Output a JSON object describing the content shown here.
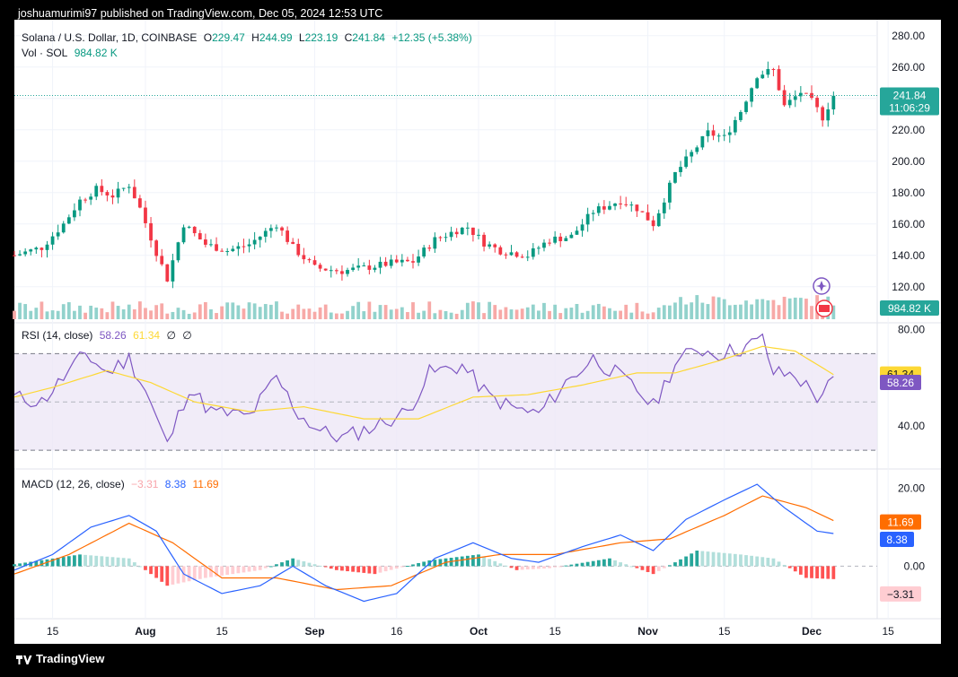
{
  "header": {
    "publisher_line": "joshuamurimi97 published on TradingView.com, Dec 05, 2024 12:53 UTC"
  },
  "legend": {
    "symbol": "Solana / U.S. Dollar, 1D, COINBASE",
    "o_label": "O",
    "o": "229.47",
    "h_label": "H",
    "h": "244.99",
    "l_label": "L",
    "l": "223.19",
    "c_label": "C",
    "c": "241.84",
    "change": "+12.35 (+5.38%)",
    "vol_label": "Vol · SOL",
    "vol": "984.82 K",
    "rsi_label": "RSI (14, close)",
    "rsi_value": "58.26",
    "rsi_ma": "61.34",
    "rsi_extra1": "∅",
    "rsi_extra2": "∅",
    "macd_label": "MACD (12, 26, close)",
    "macd_hist": "−3.31",
    "macd_line": "8.38",
    "macd_signal": "11.69"
  },
  "price_badge": {
    "price": "241.84",
    "countdown": "11:06:29"
  },
  "volume_badge": "984.82 K",
  "rsi_badges": {
    "ma": "61.34",
    "rsi": "58.26"
  },
  "macd_badges": {
    "signal": "11.69",
    "macd": "8.38",
    "hist": "−3.31"
  },
  "footer": {
    "brand": "TradingView"
  },
  "colors": {
    "up": "#089981",
    "down": "#f23645",
    "rsi": "#7e57c2",
    "rsi_ma": "#fdd835",
    "macd": "#2962ff",
    "signal": "#ff6d00",
    "badge": "#26a69a"
  },
  "chart_data": [
    {
      "type": "candlestick",
      "title": "Solana / U.S. Dollar, 1D, COINBASE",
      "y_ticks": [
        "280.00",
        "260.00",
        "240.00",
        "220.00",
        "200.00",
        "180.00",
        "160.00",
        "140.00",
        "120.00"
      ],
      "ylim": [
        105,
        285
      ],
      "x_tick_labels": [
        "15",
        "Aug",
        "15",
        "Sep",
        "16",
        "Oct",
        "15",
        "Nov",
        "15",
        "Dec",
        "15"
      ],
      "x_range": [
        "2024-07-08",
        "2024-12-13"
      ],
      "close_path": [
        [
          "2024-07-08",
          140
        ],
        [
          "2024-07-13",
          145
        ],
        [
          "2024-07-17",
          160
        ],
        [
          "2024-07-20",
          175
        ],
        [
          "2024-07-23",
          182
        ],
        [
          "2024-07-26",
          178
        ],
        [
          "2024-07-29",
          185
        ],
        [
          "2024-07-31",
          170
        ],
        [
          "2024-08-03",
          142
        ],
        [
          "2024-08-05",
          125
        ],
        [
          "2024-08-08",
          160
        ],
        [
          "2024-08-12",
          147
        ],
        [
          "2024-08-16",
          143
        ],
        [
          "2024-08-20",
          147
        ],
        [
          "2024-08-25",
          160
        ],
        [
          "2024-08-28",
          145
        ],
        [
          "2024-09-01",
          132
        ],
        [
          "2024-09-06",
          130
        ],
        [
          "2024-09-10",
          132
        ],
        [
          "2024-09-15",
          135
        ],
        [
          "2024-09-19",
          136
        ],
        [
          "2024-09-23",
          150
        ],
        [
          "2024-09-27",
          156
        ],
        [
          "2024-09-29",
          158
        ],
        [
          "2024-10-02",
          148
        ],
        [
          "2024-10-05",
          143
        ],
        [
          "2024-10-10",
          140
        ],
        [
          "2024-10-14",
          150
        ],
        [
          "2024-10-18",
          152
        ],
        [
          "2024-10-22",
          168
        ],
        [
          "2024-10-27",
          175
        ],
        [
          "2024-10-30",
          170
        ],
        [
          "2024-11-02",
          160
        ],
        [
          "2024-11-06",
          192
        ],
        [
          "2024-11-09",
          205
        ],
        [
          "2024-11-12",
          218
        ],
        [
          "2024-11-15",
          215
        ],
        [
          "2024-11-18",
          232
        ],
        [
          "2024-11-21",
          255
        ],
        [
          "2024-11-24",
          258
        ],
        [
          "2024-11-26",
          235
        ],
        [
          "2024-11-29",
          244
        ],
        [
          "2024-12-01",
          238
        ],
        [
          "2024-12-03",
          228
        ],
        [
          "2024-12-05",
          241.84
        ]
      ]
    },
    {
      "type": "line",
      "title": "RSI (14, close)",
      "y_ticks": [
        "80.00",
        "40.00"
      ],
      "ylim": [
        23,
        82
      ],
      "bands": [
        70,
        50,
        30
      ],
      "series": [
        {
          "name": "RSI",
          "points": [
            [
              "2024-07-08",
              52
            ],
            [
              "2024-07-13",
              50
            ],
            [
              "2024-07-17",
              60
            ],
            [
              "2024-07-21",
              70
            ],
            [
              "2024-07-25",
              62
            ],
            [
              "2024-07-29",
              68
            ],
            [
              "2024-08-01",
              55
            ],
            [
              "2024-08-05",
              32
            ],
            [
              "2024-08-09",
              56
            ],
            [
              "2024-08-13",
              46
            ],
            [
              "2024-08-20",
              44
            ],
            [
              "2024-08-25",
              60
            ],
            [
              "2024-08-29",
              45
            ],
            [
              "2024-09-02",
              38
            ],
            [
              "2024-09-06",
              35
            ],
            [
              "2024-09-12",
              40
            ],
            [
              "2024-09-18",
              46
            ],
            [
              "2024-09-22",
              62
            ],
            [
              "2024-09-28",
              65
            ],
            [
              "2024-10-03",
              52
            ],
            [
              "2024-10-08",
              47
            ],
            [
              "2024-10-12",
              45
            ],
            [
              "2024-10-17",
              58
            ],
            [
              "2024-10-22",
              68
            ],
            [
              "2024-10-26",
              62
            ],
            [
              "2024-10-30",
              55
            ],
            [
              "2024-11-02",
              48
            ],
            [
              "2024-11-06",
              66
            ],
            [
              "2024-11-10",
              72
            ],
            [
              "2024-11-14",
              70
            ],
            [
              "2024-11-18",
              72
            ],
            [
              "2024-11-22",
              76
            ],
            [
              "2024-11-24",
              62
            ],
            [
              "2024-11-28",
              61
            ],
            [
              "2024-12-02",
              52
            ],
            [
              "2024-12-05",
              58.26
            ]
          ]
        },
        {
          "name": "RSI-based MA",
          "points": [
            [
              "2024-07-08",
              52
            ],
            [
              "2024-07-15",
              56
            ],
            [
              "2024-07-25",
              63
            ],
            [
              "2024-08-02",
              58
            ],
            [
              "2024-08-10",
              50
            ],
            [
              "2024-08-20",
              46
            ],
            [
              "2024-08-30",
              48
            ],
            [
              "2024-09-10",
              43
            ],
            [
              "2024-09-20",
              43
            ],
            [
              "2024-09-30",
              52
            ],
            [
              "2024-10-10",
              53
            ],
            [
              "2024-10-20",
              57
            ],
            [
              "2024-10-30",
              62
            ],
            [
              "2024-11-06",
              62
            ],
            [
              "2024-11-14",
              67
            ],
            [
              "2024-11-22",
              73
            ],
            [
              "2024-11-28",
              71
            ],
            [
              "2024-12-05",
              61.34
            ]
          ]
        }
      ]
    },
    {
      "type": "line",
      "title": "MACD (12, 26, close)",
      "y_ticks": [
        "20.00",
        "0.00"
      ],
      "ylim": [
        -13,
        24
      ],
      "series": [
        {
          "name": "MACD",
          "points": [
            [
              "2024-07-08",
              -1
            ],
            [
              "2024-07-15",
              3
            ],
            [
              "2024-07-22",
              10
            ],
            [
              "2024-07-29",
              13
            ],
            [
              "2024-08-03",
              9
            ],
            [
              "2024-08-08",
              -2
            ],
            [
              "2024-08-15",
              -7
            ],
            [
              "2024-08-22",
              -5
            ],
            [
              "2024-08-28",
              0
            ],
            [
              "2024-09-03",
              -5
            ],
            [
              "2024-09-10",
              -9
            ],
            [
              "2024-09-16",
              -7
            ],
            [
              "2024-09-23",
              2
            ],
            [
              "2024-09-30",
              6
            ],
            [
              "2024-10-07",
              2
            ],
            [
              "2024-10-12",
              1
            ],
            [
              "2024-10-20",
              5
            ],
            [
              "2024-10-27",
              8
            ],
            [
              "2024-11-02",
              4
            ],
            [
              "2024-11-08",
              12
            ],
            [
              "2024-11-15",
              17
            ],
            [
              "2024-11-21",
              21
            ],
            [
              "2024-11-26",
              15
            ],
            [
              "2024-12-02",
              9
            ],
            [
              "2024-12-05",
              8.38
            ]
          ]
        },
        {
          "name": "Signal",
          "points": [
            [
              "2024-07-08",
              -2
            ],
            [
              "2024-07-18",
              3
            ],
            [
              "2024-07-29",
              11
            ],
            [
              "2024-08-06",
              6
            ],
            [
              "2024-08-15",
              -3
            ],
            [
              "2024-08-25",
              -3
            ],
            [
              "2024-09-05",
              -6
            ],
            [
              "2024-09-15",
              -5
            ],
            [
              "2024-09-25",
              1
            ],
            [
              "2024-10-05",
              3
            ],
            [
              "2024-10-15",
              3
            ],
            [
              "2024-10-27",
              6
            ],
            [
              "2024-11-05",
              7
            ],
            [
              "2024-11-15",
              13
            ],
            [
              "2024-11-22",
              18
            ],
            [
              "2024-11-30",
              15
            ],
            [
              "2024-12-05",
              11.69
            ]
          ]
        },
        {
          "name": "Histogram",
          "points": [
            [
              "2024-07-08",
              0.5
            ],
            [
              "2024-07-20",
              3
            ],
            [
              "2024-07-29",
              2
            ],
            [
              "2024-08-05",
              -5
            ],
            [
              "2024-08-12",
              -3
            ],
            [
              "2024-08-22",
              -1
            ],
            [
              "2024-08-28",
              2
            ],
            [
              "2024-09-05",
              -1
            ],
            [
              "2024-09-12",
              -2
            ],
            [
              "2024-09-22",
              1.5
            ],
            [
              "2024-10-01",
              3
            ],
            [
              "2024-10-08",
              -1
            ],
            [
              "2024-10-14",
              -0.5
            ],
            [
              "2024-10-25",
              2
            ],
            [
              "2024-11-02",
              -2
            ],
            [
              "2024-11-10",
              4
            ],
            [
              "2024-11-18",
              3
            ],
            [
              "2024-11-24",
              2
            ],
            [
              "2024-11-30",
              -3
            ],
            [
              "2024-12-05",
              -3.31
            ]
          ]
        }
      ]
    }
  ]
}
